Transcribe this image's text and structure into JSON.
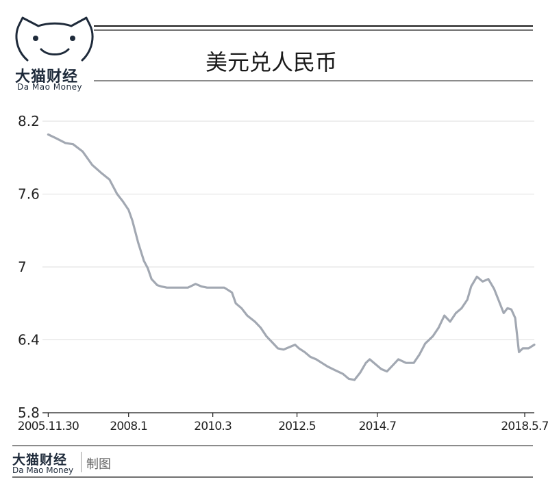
{
  "header": {
    "brand_cn": "大猫财经",
    "brand_en": "Da Mao Money",
    "logo_icon": "cat-face-icon"
  },
  "footer": {
    "brand_cn": "大猫财经",
    "brand_en": "Da Mao Money",
    "credit": "制图"
  },
  "colors": {
    "line": "#a2a8b2",
    "rule": "#1a1a1a",
    "grid": "#dcdcdc",
    "logo": "#1e2a3a"
  },
  "chart_data": {
    "type": "line",
    "title": "美元兑人民币",
    "xlabel": "",
    "ylabel": "",
    "ylim": [
      5.8,
      8.2
    ],
    "yticks": [
      "8.2",
      "7.6",
      "7",
      "6.4",
      "5.8"
    ],
    "ytick_values": [
      8.2,
      7.6,
      7.0,
      6.4,
      5.8
    ],
    "xticks": [
      "2005.11.30",
      "2008.1",
      "2010.3",
      "2012.5",
      "2014.7",
      "2018.5.7"
    ],
    "xtick_values": [
      2005.9,
      2008.0,
      2010.2,
      2012.4,
      2014.5,
      2018.35
    ],
    "xlim": [
      2005.75,
      2018.6
    ],
    "grid": true,
    "series": [
      {
        "x": [
          2005.9,
          2006.1,
          2006.35,
          2006.55,
          2006.8,
          2007.05,
          2007.3,
          2007.5,
          2007.7,
          2007.85,
          2008.0,
          2008.1,
          2008.25,
          2008.4,
          2008.5,
          2008.6,
          2008.75,
          2008.85,
          2009.0,
          2009.15,
          2009.3,
          2009.45,
          2009.55,
          2009.75,
          2009.9,
          2010.05,
          2010.2,
          2010.35,
          2010.5,
          2010.6,
          2010.7,
          2010.8,
          2010.95,
          2011.1,
          2011.3,
          2011.45,
          2011.6,
          2011.75,
          2011.9,
          2012.05,
          2012.2,
          2012.35,
          2012.45,
          2012.6,
          2012.75,
          2012.9,
          2013.05,
          2013.2,
          2013.4,
          2013.6,
          2013.75,
          2013.9,
          2014.05,
          2014.2,
          2014.3,
          2014.45,
          2014.6,
          2014.75,
          2014.9,
          2015.05,
          2015.25,
          2015.45,
          2015.6,
          2015.75,
          2015.95,
          2016.1,
          2016.25,
          2016.4,
          2016.55,
          2016.7,
          2016.85,
          2016.95,
          2017.1,
          2017.25,
          2017.4,
          2017.55,
          2017.65,
          2017.8,
          2017.9,
          2018.0,
          2018.1,
          2018.2,
          2018.3,
          2018.45,
          2018.6
        ],
        "values": [
          8.09,
          8.06,
          8.02,
          8.01,
          7.95,
          7.84,
          7.77,
          7.72,
          7.6,
          7.54,
          7.47,
          7.38,
          7.2,
          7.05,
          6.99,
          6.9,
          6.85,
          6.84,
          6.83,
          6.83,
          6.83,
          6.83,
          6.83,
          6.86,
          6.84,
          6.83,
          6.83,
          6.83,
          6.83,
          6.81,
          6.79,
          6.7,
          6.66,
          6.6,
          6.55,
          6.5,
          6.43,
          6.38,
          6.33,
          6.32,
          6.34,
          6.36,
          6.33,
          6.3,
          6.26,
          6.24,
          6.21,
          6.18,
          6.15,
          6.12,
          6.08,
          6.07,
          6.13,
          6.21,
          6.24,
          6.2,
          6.16,
          6.14,
          6.19,
          6.24,
          6.21,
          6.21,
          6.28,
          6.37,
          6.43,
          6.5,
          6.6,
          6.55,
          6.62,
          6.66,
          6.73,
          6.84,
          6.92,
          6.88,
          6.9,
          6.82,
          6.74,
          6.62,
          6.66,
          6.65,
          6.58,
          6.3,
          6.33,
          6.33,
          6.36
        ]
      }
    ]
  }
}
